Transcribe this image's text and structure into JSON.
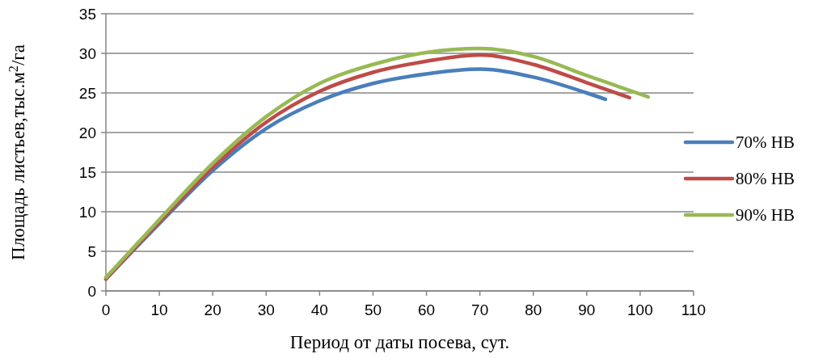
{
  "chart_data": {
    "type": "line",
    "xlabel": "Период от даты посева, сут.",
    "ylabel": "Площадь листьев,тыс.м$^{2}$/га",
    "xlim": [
      0,
      110
    ],
    "xticks": [
      0,
      10,
      20,
      30,
      40,
      50,
      60,
      70,
      80,
      90,
      100,
      110
    ],
    "ylim": [
      0,
      35
    ],
    "yticks": [
      0,
      5,
      10,
      15,
      20,
      25,
      30,
      35
    ],
    "grid": "y",
    "legend": "right",
    "line_style": "solid",
    "marker": "none",
    "series": [
      {
        "name": "70% НВ",
        "color": "#4a7ebb",
        "x": [
          0,
          10,
          20,
          30,
          40,
          50,
          60,
          70,
          80,
          90,
          93.5
        ],
        "values": [
          1.5,
          8.5,
          15.2,
          20.5,
          24,
          26.2,
          27.4,
          28,
          27,
          25,
          24.2
        ]
      },
      {
        "name": "80% НВ",
        "color": "#be4b48",
        "x": [
          0,
          10,
          20,
          30,
          40,
          50,
          60,
          70,
          80,
          90,
          98
        ],
        "values": [
          1.5,
          8.7,
          15.6,
          21.3,
          25.2,
          27.6,
          29,
          29.8,
          28.6,
          26.3,
          24.4
        ]
      },
      {
        "name": "90% НВ",
        "color": "#98b954",
        "x": [
          0,
          10,
          20,
          30,
          40,
          50,
          60,
          70,
          80,
          90,
          101.5
        ],
        "values": [
          1.7,
          9,
          16.1,
          22,
          26.2,
          28.6,
          30.1,
          30.6,
          29.6,
          27.2,
          24.5
        ]
      }
    ]
  }
}
